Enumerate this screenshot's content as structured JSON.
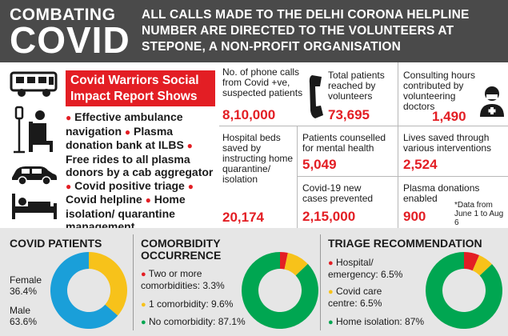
{
  "header": {
    "combating": "COMBATING",
    "covid": "COVID",
    "text": "ALL CALLS MADE TO THE DELHI CORONA HELPLINE NUMBER ARE DIRECTED TO THE VOLUNTEERS AT STEPONE, A NON-PROFIT ORGANISATION"
  },
  "report": {
    "title": "Covid Warriors Social Impact Report Shows",
    "items": [
      "Effective ambulance navigation",
      "Plasma donation bank at ILBS",
      "Free rides to all plasma donors by a cab aggregator",
      "Covid positive triage",
      "Covid helpline",
      "Home isolation/ quarantine management"
    ]
  },
  "stats": {
    "phone_calls": {
      "label": "No. of phone calls from Covid +ve, suspected patients",
      "value": "8,10,000"
    },
    "patients_reached": {
      "label": "Total patients reached by volunteers",
      "value": "73,695"
    },
    "consulting_hours": {
      "label": "Consulting hours contributed by volunteering doctors",
      "value": "1,490"
    },
    "beds_saved": {
      "label": "Hospital beds saved by instructing home quarantine/ isolation",
      "value": "20,174"
    },
    "counselled": {
      "label": "Patients counselled for mental health",
      "value": "5,049"
    },
    "cases_prevented": {
      "label": "Covid-19 new cases prevented",
      "value": "2,15,000"
    },
    "lives_saved": {
      "label": "Lives saved through various interventions",
      "value": "2,524"
    },
    "plasma": {
      "label": "Plasma donations enabled",
      "value": "900"
    },
    "data_note": "*Data from June 1 to Aug 6"
  },
  "colors": {
    "red": "#e31e24",
    "yellow": "#f7c21a",
    "green": "#00a651",
    "blue": "#1a9fd9",
    "dark": "#4a4a4a",
    "panel": "#e6e6e6"
  },
  "icons": [
    "ambulance-icon",
    "iv-drip-chair-icon",
    "car-icon",
    "hospital-bed-icon",
    "phone-handset-icon",
    "doctor-icon"
  ],
  "bottom": {
    "patients": {
      "title": "COVID PATIENTS",
      "female_label": "Female",
      "female_value": "36.4%",
      "male_label": "Male",
      "male_value": "63.6%"
    },
    "comorbidity": {
      "title_line1": "COMORBIDITY",
      "title_line2": "OCCURRENCE",
      "items": [
        "Two or more comorbidities: 3.3%",
        "1 comorbidity: 9.6%",
        "No comorbidity: 87.1%"
      ]
    },
    "triage": {
      "title": "TRIAGE RECOMMENDATION",
      "items": [
        "Hospital/ emergency: 6.5%",
        "Covid care centre: 6.5%",
        "Home isolation: 87%"
      ]
    }
  },
  "chart_data": [
    {
      "type": "pie",
      "title": "COVID PATIENTS",
      "categories": [
        "Female",
        "Male"
      ],
      "values": [
        36.4,
        63.6
      ],
      "colors": [
        "#f7c21a",
        "#1a9fd9"
      ]
    },
    {
      "type": "pie",
      "title": "COMORBIDITY OCCURRENCE",
      "categories": [
        "Two or more comorbidities",
        "1 comorbidity",
        "No comorbidity"
      ],
      "values": [
        3.3,
        9.6,
        87.1
      ],
      "colors": [
        "#e31e24",
        "#f7c21a",
        "#00a651"
      ]
    },
    {
      "type": "pie",
      "title": "TRIAGE RECOMMENDATION",
      "categories": [
        "Hospital/ emergency",
        "Covid care centre",
        "Home isolation"
      ],
      "values": [
        6.5,
        6.5,
        87
      ],
      "colors": [
        "#e31e24",
        "#f7c21a",
        "#00a651"
      ]
    }
  ]
}
